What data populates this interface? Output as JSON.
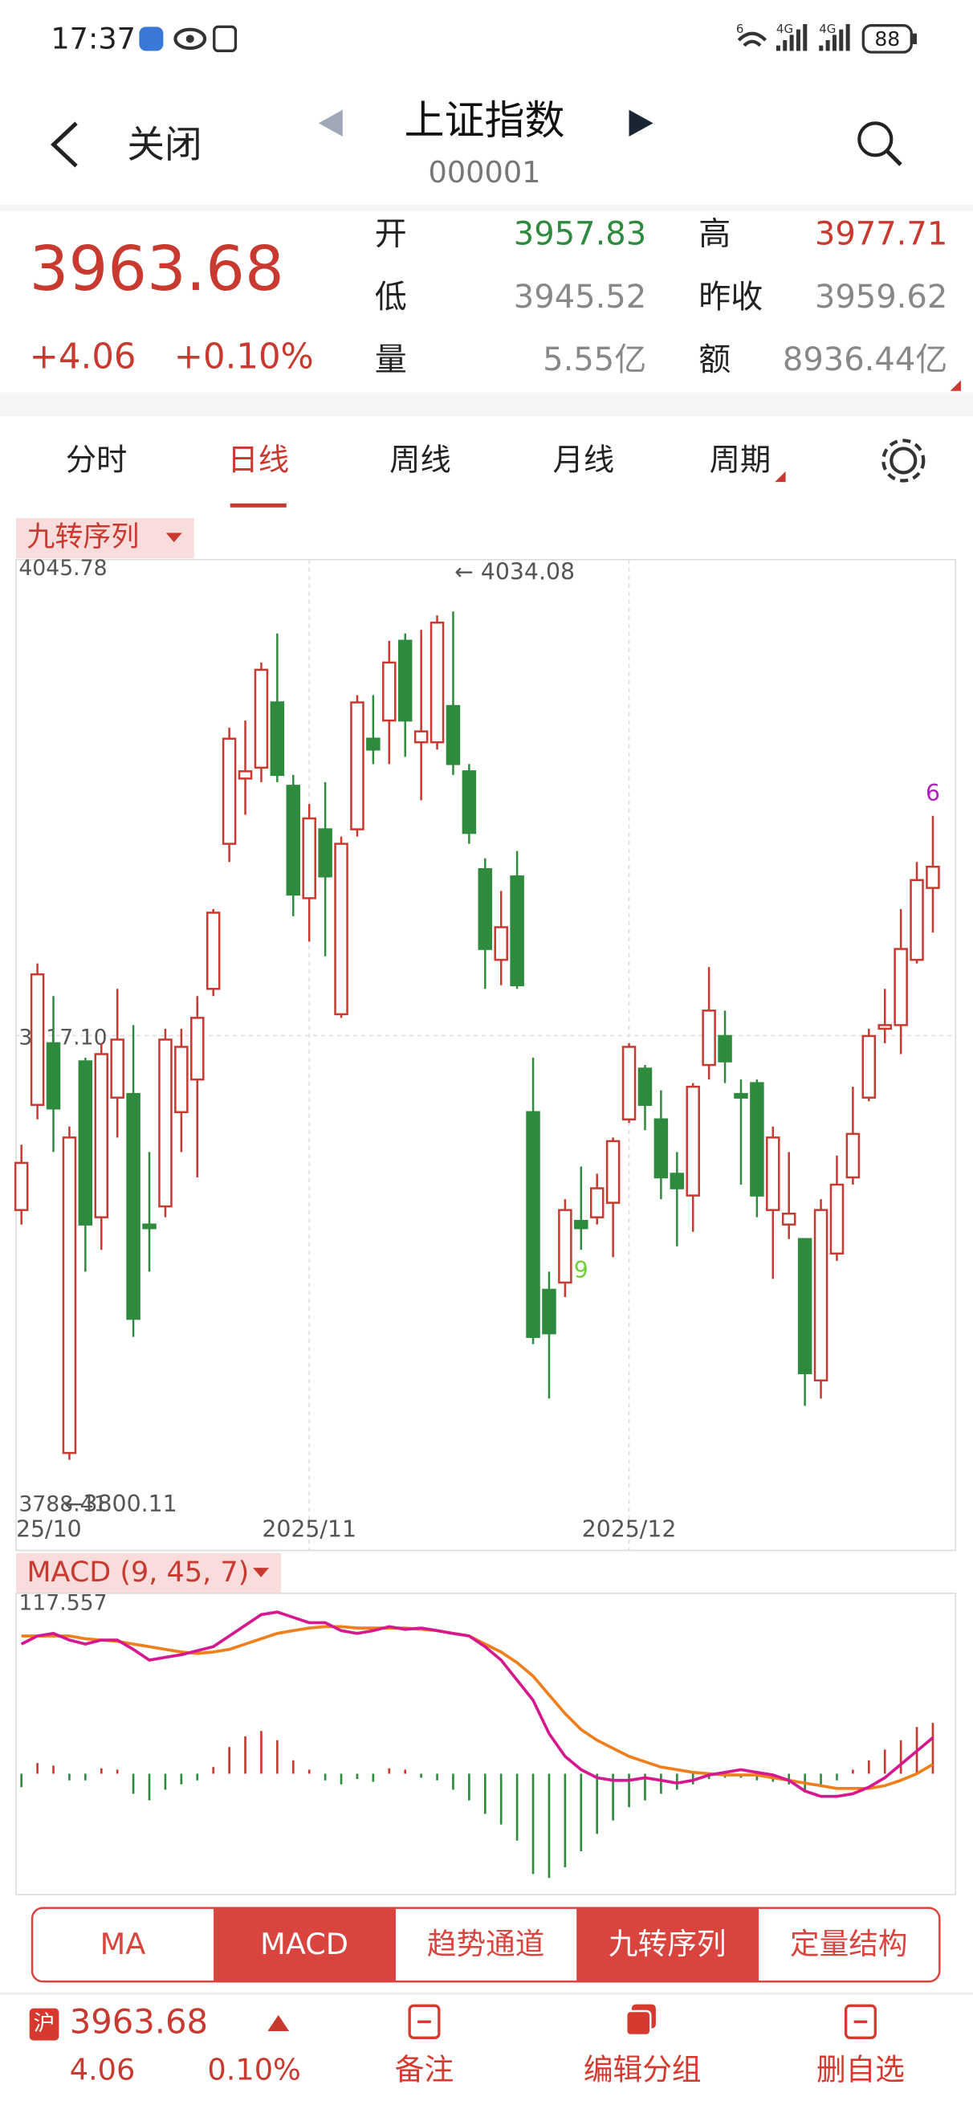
{
  "status_bar": {
    "time": "17:37",
    "wifi_badge": "6",
    "signal_1": "4G",
    "signal_2": "4G",
    "battery": "88"
  },
  "header": {
    "back": "关闭",
    "title": "上证指数",
    "code": "000001"
  },
  "quote": {
    "price": "3963.68",
    "change": "+4.06",
    "change_pct": "+0.10%",
    "fields": [
      {
        "label": "开",
        "value": "3957.83",
        "color": "#2e8b3e"
      },
      {
        "label": "高",
        "value": "3977.71",
        "color": "#c8392f"
      },
      {
        "label": "低",
        "value": "3945.52",
        "color": "#888888"
      },
      {
        "label": "昨收",
        "value": "3959.62",
        "color": "#888888"
      },
      {
        "label": "量",
        "value": "5.55亿",
        "color": "#888888"
      },
      {
        "label": "额",
        "value": "8936.44亿",
        "color": "#888888"
      }
    ]
  },
  "tabs": {
    "items": [
      "分时",
      "日线",
      "周线",
      "月线",
      "周期"
    ],
    "active": 1
  },
  "kline": {
    "type": "candlestick",
    "indicator": "九转序列",
    "up_color": "#c8392f",
    "down_color": "#2e8b3e",
    "ylim": [
      3788.41,
      4045.78
    ],
    "yticks": [
      4045.78,
      {
        "value": 3917.1,
        "label": "3917.10"
      },
      3788.41
    ],
    "categories": [
      "25/10",
      null,
      null,
      null,
      null,
      null,
      null,
      null,
      null,
      null,
      null,
      null,
      null,
      null,
      null,
      null,
      null,
      null,
      "2025/11",
      null,
      null,
      null,
      null,
      null,
      null,
      null,
      null,
      null,
      null,
      null,
      null,
      null,
      null,
      null,
      null,
      null,
      null,
      null,
      "2025/12",
      null,
      null,
      null,
      null,
      null,
      null,
      null,
      null,
      null,
      null,
      null,
      null,
      null,
      null,
      null,
      null,
      null,
      null,
      null
    ],
    "open": [
      3869,
      3898,
      3915,
      3802,
      3910,
      3867,
      3900,
      3901,
      3865,
      3870,
      3896,
      3905,
      3930,
      3970,
      3988,
      3991,
      4009,
      3986,
      3955,
      3974,
      3923,
      3974,
      3999,
      4004,
      4026,
      3998,
      3998,
      4008,
      3990,
      3963,
      3938,
      3961,
      3896,
      3847,
      3849,
      3866,
      3867,
      3871,
      3894,
      3908,
      3894,
      3879,
      3873,
      3909,
      3917,
      3901,
      3904,
      3869,
      3865,
      3861,
      3822,
      3857,
      3878,
      3900,
      3919,
      3920,
      3938,
      3957.83
    ],
    "high": [
      3887,
      3937,
      3928,
      3892,
      3911,
      3915,
      3930,
      3920,
      3885,
      3919,
      3919,
      3928,
      3952,
      4002,
      4004,
      4020,
      4028,
      3989,
      3981,
      3987,
      3972,
      4011,
      4011,
      4026,
      4028,
      4029,
      4033,
      4034.08,
      3992,
      3966,
      3957,
      3968,
      3911,
      3852,
      3872,
      3881,
      3879,
      3889,
      3915,
      3909,
      3902,
      3885,
      3904,
      3936,
      3924,
      3905,
      3905,
      3892,
      3885,
      3861,
      3872,
      3884,
      3903,
      3919,
      3930,
      3952,
      3965,
      3977.71
    ],
    "low": [
      3865,
      3894,
      3885,
      3800.11,
      3852,
      3858,
      3889,
      3834,
      3852,
      3867,
      3885,
      3878,
      3928,
      3965,
      3978,
      3987,
      3987,
      3950,
      3943,
      3939,
      3922,
      3972,
      3992,
      3992,
      3994,
      3982,
      3996,
      3989,
      3970,
      3930,
      3931,
      3930,
      3832,
      3817,
      3845,
      3858,
      3865,
      3856,
      3893,
      3891,
      3872,
      3859,
      3863,
      3905,
      3904,
      3876,
      3867,
      3850,
      3861,
      3815,
      3817,
      3855,
      3876,
      3899,
      3915,
      3912,
      3937,
      3945.52
    ],
    "close": [
      3882,
      3934,
      3897,
      3889,
      3865,
      3912,
      3916,
      3839,
      3864,
      3916,
      3914,
      3922,
      3951,
      3999,
      3990,
      4018,
      3989,
      3956,
      3977,
      3961,
      3970,
      4009,
      3996,
      4020,
      4004,
      4001,
      4031,
      3992,
      3973,
      3941,
      3947,
      3931,
      3834,
      3835,
      3869,
      3864,
      3875,
      3888,
      3914,
      3898,
      3878,
      3875,
      3903,
      3924,
      3910,
      3900,
      3873,
      3889,
      3868,
      3824,
      3869,
      3876,
      3890,
      3917,
      3920,
      3941,
      3960,
      3963.68
    ],
    "max_label": "← 4034.08",
    "min_label": "←3800.11",
    "signals": [
      {
        "index": 35,
        "label": "9",
        "color": "#6fcf3a",
        "position": "below"
      },
      {
        "index": 57,
        "label": "6",
        "color": "#b020c0",
        "position": "above"
      }
    ]
  },
  "macd": {
    "title": "MACD (9, 45, 7)",
    "ylim": [
      -80,
      117.557
    ],
    "yticks": [
      117.557
    ],
    "dif": {
      "color": "#d6188f",
      "values": [
        89.8,
        95.4,
        97.2,
        92.6,
        89.8,
        92.6,
        92.6,
        86.1,
        78.7,
        80.6,
        82.4,
        85.2,
        88.0,
        95.4,
        102.8,
        110.2,
        112.0,
        108.3,
        104.6,
        104.6,
        99.1,
        97.2,
        99.1,
        101.9,
        100.0,
        100.9,
        99.1,
        97.2,
        95.4,
        88.0,
        78.7,
        64.8,
        50.9,
        27.8,
        12.0,
        2.8,
        -2.8,
        -4.6,
        -4.6,
        -2.8,
        -4.6,
        -6.5,
        -4.6,
        -0.9,
        0.9,
        2.8,
        0.9,
        -0.9,
        -4.6,
        -12.0,
        -15.7,
        -15.7,
        -13.9,
        -9.3,
        -2.8,
        6.5,
        15.7,
        25.0
      ]
    },
    "dea": {
      "color": "#f07f1b",
      "values": [
        95.4,
        95.4,
        95.4,
        95.4,
        93.5,
        92.6,
        91.7,
        89.8,
        88.0,
        86.1,
        84.3,
        83.3,
        84.3,
        86.1,
        89.8,
        93.5,
        97.2,
        99.1,
        100.9,
        101.9,
        101.9,
        100.9,
        100.9,
        100.9,
        100.9,
        100.0,
        99.1,
        97.2,
        95.4,
        89.8,
        84.3,
        76.9,
        67.6,
        54.6,
        41.7,
        30.6,
        23.2,
        17.6,
        12.0,
        8.3,
        4.6,
        2.8,
        0.9,
        0,
        -0.9,
        -0.9,
        -0.9,
        -2.8,
        -4.6,
        -6.5,
        -8.3,
        -10.2,
        -10.2,
        -10.2,
        -8.3,
        -4.6,
        0,
        6.5
      ]
    },
    "hist": {
      "up_color": "#c8392f",
      "down_color": "#2e8b3e",
      "values": [
        -9.3,
        7.4,
        5.6,
        -4.6,
        -4.6,
        3.7,
        2.8,
        -13.9,
        -18.5,
        -11.1,
        -7.4,
        -4.6,
        4.6,
        18.5,
        25.9,
        29.6,
        23.2,
        9.3,
        2.8,
        -4.6,
        -7.4,
        -3.7,
        -5.6,
        3.7,
        2.8,
        -2.8,
        -4.6,
        -11.1,
        -18.5,
        -27.8,
        -35.2,
        -46.3,
        -69.5,
        -72.2,
        -64.8,
        -53.7,
        -41.7,
        -32.4,
        -23.2,
        -18.5,
        -13.9,
        -11.1,
        -7.4,
        -3.7,
        -2.8,
        -2.8,
        -4.6,
        -5.6,
        -7.4,
        -11.1,
        -7.4,
        -4.6,
        2.8,
        9.3,
        16.7,
        23.2,
        32.4,
        35.2
      ]
    }
  },
  "indicator_buttons": {
    "items": [
      "MA",
      "MACD",
      "趋势通道",
      "九转序列",
      "定量结构"
    ],
    "active": [
      1,
      3
    ]
  },
  "bottom_bar": {
    "badge": "沪",
    "price": "3963.68",
    "change": "4.06",
    "change_pct": "0.10%",
    "actions": [
      "备注",
      "编辑分组",
      "删自选"
    ]
  }
}
